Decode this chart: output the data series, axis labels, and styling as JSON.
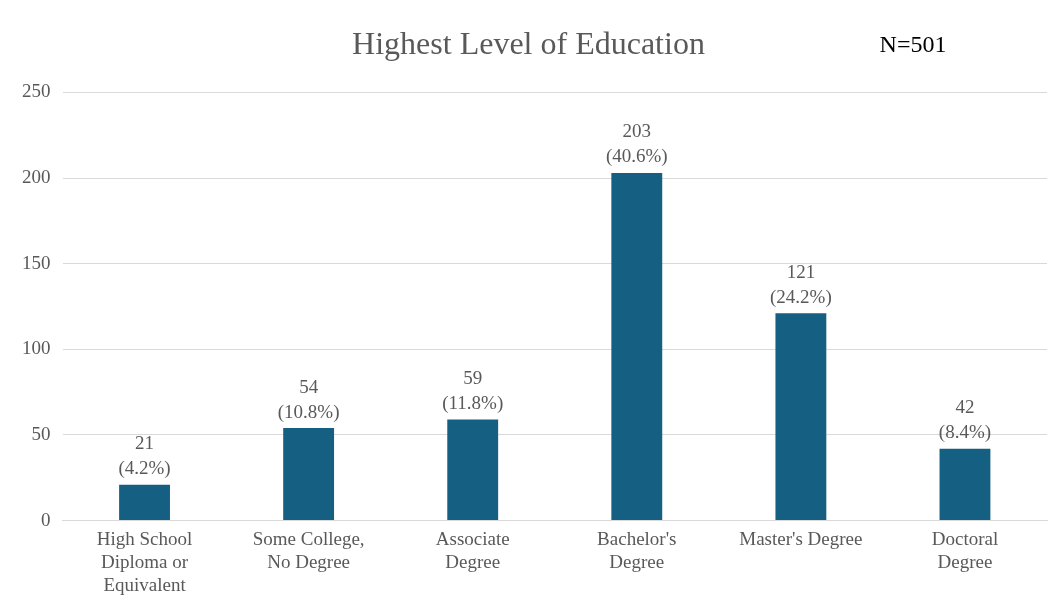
{
  "chart_data": {
    "type": "bar",
    "title": "Highest Level of Education",
    "annotations": [
      "N=501"
    ],
    "categories": [
      "High School Diploma or Equivalent",
      "Some College, No Degree",
      "Associate Degree",
      "Bachelor's Degree",
      "Master's Degree",
      "Doctoral Degree"
    ],
    "values": [
      21,
      54,
      59,
      203,
      121,
      42
    ],
    "value_labels": [
      "21 (4.2%)",
      "54 (10.8%)",
      "59 (11.8%)",
      "203 (40.6%)",
      "121 (24.2%)",
      "42 (8.4%)"
    ],
    "color": "#156082",
    "ylim": [
      0,
      250
    ],
    "yticks": [
      0,
      50,
      100,
      150,
      200,
      250
    ],
    "grid": "y",
    "legend": false
  }
}
